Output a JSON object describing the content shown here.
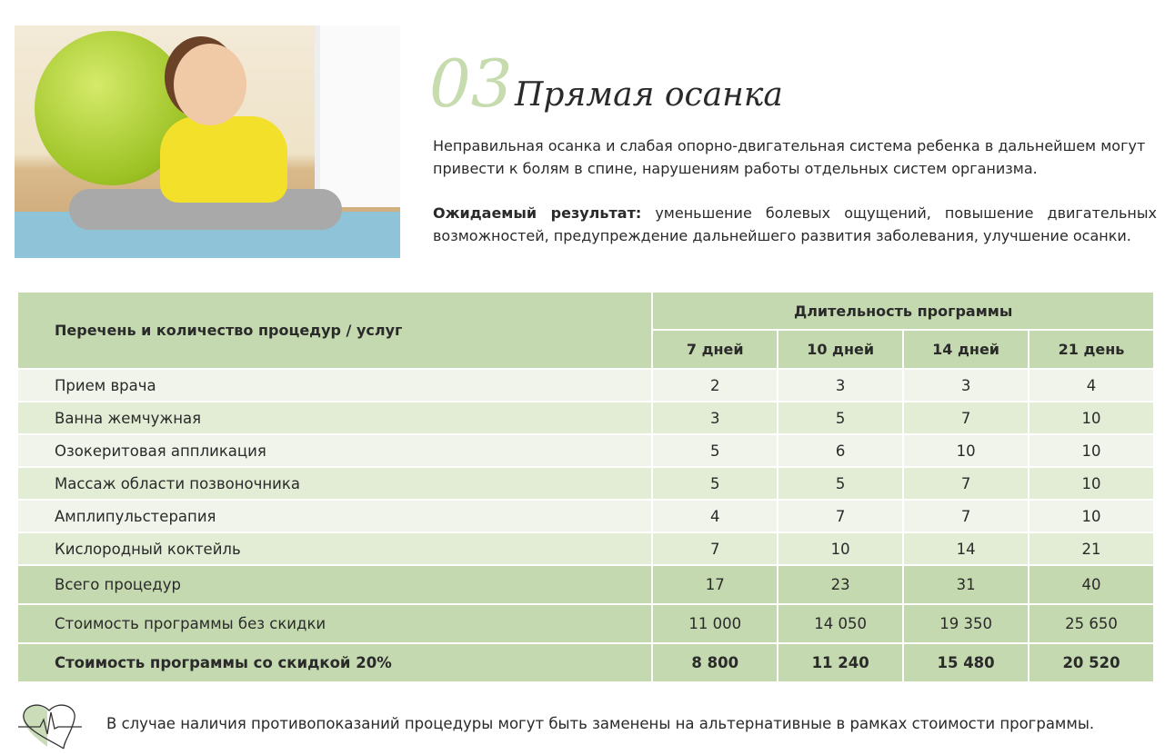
{
  "header": {
    "number": "03",
    "title": "Прямая осанка"
  },
  "intro": "Неправильная осанка и слабая опорно-двигательная система ребенка в дальнейшем могут привести к болям в спине, нарушениям работы отдельных систем организма.",
  "result": {
    "label": "Ожидаемый результат:",
    "text": " уменьшение болевых ощущений, повышение двигательных возможностей, предупреждение дальнейшего развития заболевания, улучшение осанки."
  },
  "table": {
    "service_header": "Перечень и количество процедур / услуг",
    "duration_header": "Длительность программы",
    "days": [
      "7 дней",
      "10 дней",
      "14 дней",
      "21 день"
    ],
    "rows": [
      {
        "name": "Прием врача",
        "values": [
          "2",
          "3",
          "3",
          "4"
        ]
      },
      {
        "name": "Ванна жемчужная",
        "values": [
          "3",
          "5",
          "7",
          "10"
        ]
      },
      {
        "name": "Озокеритовая аппликация",
        "values": [
          "5",
          "6",
          "10",
          "10"
        ]
      },
      {
        "name": "Массаж области позвоночника",
        "values": [
          "5",
          "5",
          "7",
          "10"
        ]
      },
      {
        "name": "Амплипульстерапия",
        "values": [
          "4",
          "7",
          "7",
          "10"
        ]
      },
      {
        "name": "Кислородный коктейль",
        "values": [
          "7",
          "10",
          "14",
          "21"
        ]
      }
    ],
    "totals": [
      {
        "name": "Всего процедур",
        "values": [
          "17",
          "23",
          "31",
          "40"
        ]
      },
      {
        "name": "Стоимость программы без скидки",
        "values": [
          "11 000",
          "14 050",
          "19 350",
          "25 650"
        ]
      },
      {
        "name": "Стоимость программы со скидкой 20%",
        "values": [
          "8 800",
          "11 240",
          "15 480",
          "20 520"
        ]
      }
    ]
  },
  "footnote": "В случае наличия противопоказаний процедуры могут быть заменены на альтернативные в рамках стоимости программы.",
  "colors": {
    "header_green": "#c5d9b0",
    "row_light": "#f1f4ea",
    "row_alt": "#e3edd5",
    "accent_number": "#c7dcae"
  },
  "icons": {
    "footnote": "heart-pulse-icon"
  }
}
